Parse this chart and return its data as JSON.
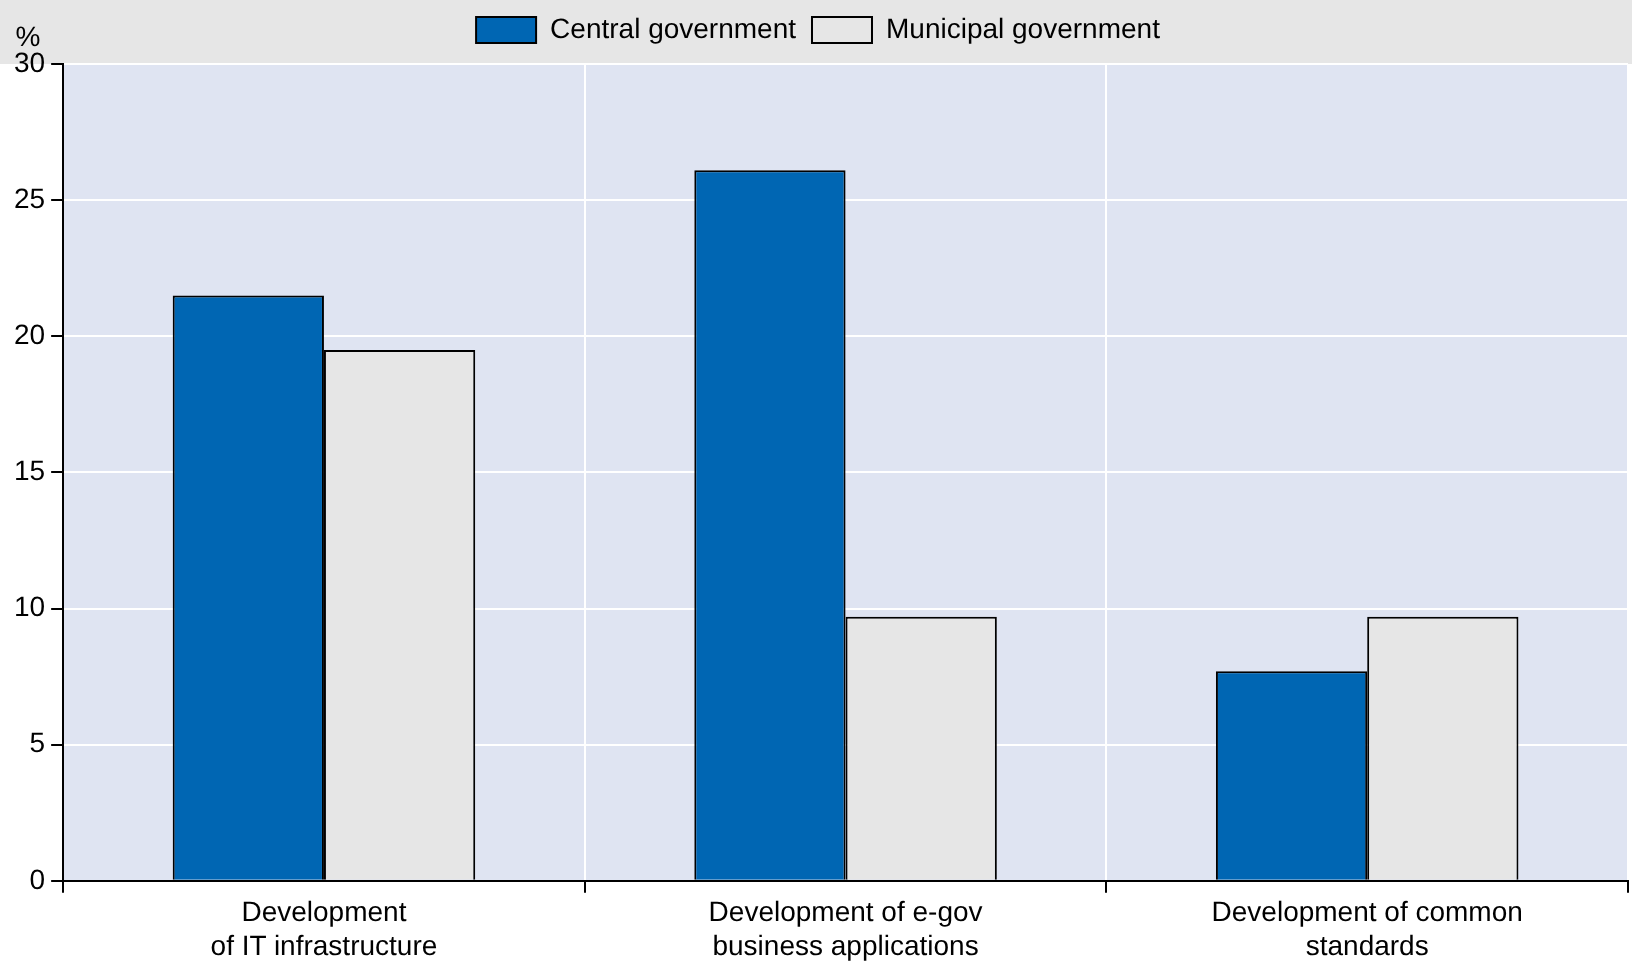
{
  "chart_data": {
    "type": "bar",
    "ylabel": "%",
    "categories": [
      "Development\nof IT infrastructure",
      "Development of e-gov\nbusiness applications",
      "Development of common\nstandards"
    ],
    "series": [
      {
        "name": "Central government",
        "color": "#0066b3",
        "values": [
          21.5,
          26.1,
          7.7
        ]
      },
      {
        "name": "Municipal government",
        "color": "#e6e6e6",
        "values": [
          19.5,
          9.7,
          9.7
        ]
      }
    ],
    "ylim": [
      0,
      30
    ],
    "yticks": [
      0,
      5,
      10,
      15,
      20,
      25,
      30
    ],
    "grid": true,
    "legend": "top"
  }
}
